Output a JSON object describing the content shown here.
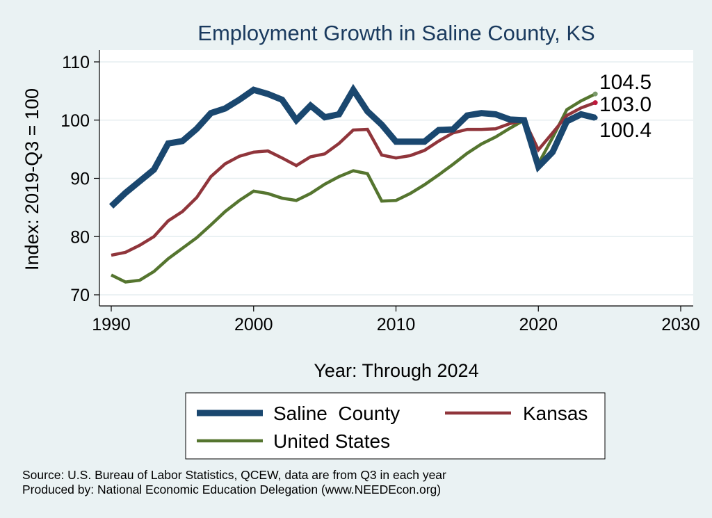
{
  "chart_data": {
    "type": "line",
    "title": "Employment Growth in Saline County, KS",
    "xlabel": "Year: Through 2024",
    "ylabel": "Index: 2019-Q3 = 100",
    "xlim": [
      1990,
      2030
    ],
    "ylim": [
      70,
      110
    ],
    "xticks": [
      1990,
      2000,
      2010,
      2020,
      2030
    ],
    "yticks": [
      70,
      80,
      90,
      100,
      110
    ],
    "x": [
      1990,
      1991,
      1992,
      1993,
      1994,
      1995,
      1996,
      1997,
      1998,
      1999,
      2000,
      2001,
      2002,
      2003,
      2004,
      2005,
      2006,
      2007,
      2008,
      2009,
      2010,
      2011,
      2012,
      2013,
      2014,
      2015,
      2016,
      2017,
      2018,
      2019,
      2020,
      2021,
      2022,
      2023,
      2024
    ],
    "series": [
      {
        "name": "Saline  County",
        "color": "#1a476f",
        "width": "thick",
        "end_label": "100.4",
        "values": [
          85.2,
          87.5,
          89.5,
          91.5,
          96.0,
          96.4,
          98.5,
          101.2,
          102.0,
          103.5,
          105.2,
          104.5,
          103.5,
          100.0,
          102.5,
          100.5,
          101.0,
          105.2,
          101.5,
          99.2,
          96.3,
          96.3,
          96.3,
          98.3,
          98.4,
          100.8,
          101.2,
          101.0,
          100.1,
          100.0,
          92.0,
          94.5,
          99.8,
          101.0,
          100.4
        ]
      },
      {
        "name": "Kansas",
        "color": "#90353b",
        "width": "thin",
        "end_label": "103.0",
        "values": [
          76.8,
          77.3,
          78.5,
          80.0,
          82.7,
          84.3,
          86.7,
          90.3,
          92.5,
          93.8,
          94.5,
          94.7,
          93.5,
          92.2,
          93.7,
          94.2,
          96.0,
          98.3,
          98.4,
          94.0,
          93.5,
          93.9,
          94.8,
          96.4,
          97.8,
          98.4,
          98.4,
          98.5,
          99.4,
          100.0,
          94.9,
          97.8,
          100.8,
          102.1,
          103.0
        ]
      },
      {
        "name": "United States",
        "color": "#55752f",
        "width": "thin",
        "end_label": "104.5",
        "values": [
          73.4,
          72.2,
          72.5,
          74.0,
          76.2,
          78.0,
          79.8,
          82.0,
          84.3,
          86.2,
          87.8,
          87.4,
          86.6,
          86.2,
          87.4,
          89.0,
          90.3,
          91.3,
          90.8,
          86.1,
          86.2,
          87.4,
          88.9,
          90.6,
          92.4,
          94.3,
          95.9,
          97.1,
          98.6,
          100.0,
          92.5,
          97.0,
          101.8,
          103.3,
          104.5
        ]
      }
    ],
    "legend": [
      {
        "label": "Saline  County",
        "series": 0
      },
      {
        "label": "Kansas",
        "series": 1
      },
      {
        "label": "United States",
        "series": 2
      }
    ],
    "legend_position": "bottom",
    "background": "#eaf2f3",
    "plot_background": "#ffffff"
  },
  "source_lines": [
    "Source: U.S. Bureau of Labor Statistics, QCEW, data are from Q3 in each year",
    "Produced by: National Economic Education Delegation (www.NEEDEcon.org)"
  ]
}
